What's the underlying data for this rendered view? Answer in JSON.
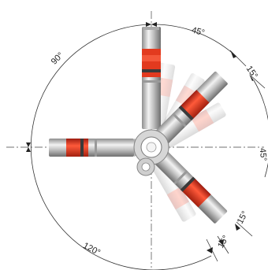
{
  "diagram": {
    "angles": {
      "top_to_upper_right": "45°",
      "upper_right_offset": "15°",
      "left_to_top": "90°",
      "right_edge": "45°",
      "left_to_lower": "120°",
      "lower_offset_a": "15°",
      "lower_offset_b": "15°"
    },
    "colors": {
      "arm_metal": "#c9c9c9",
      "signal_red": "#e23a1f",
      "dark_band": "#3a3a3a",
      "dimension_line": "#333333"
    },
    "icons": {
      "hub": "pivot-hub-icon",
      "tower": "signal-tower-icon"
    }
  }
}
